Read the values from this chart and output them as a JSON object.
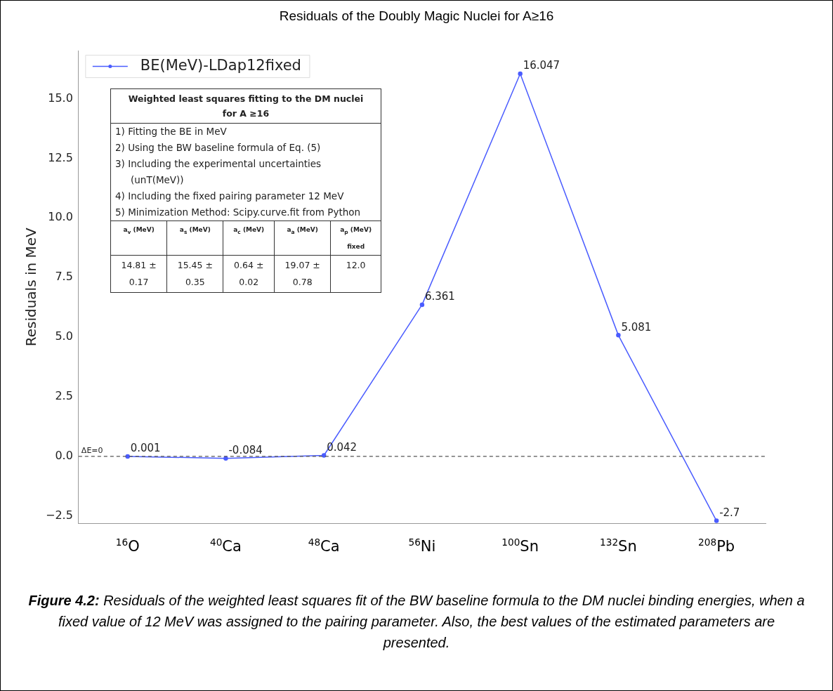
{
  "chart_data": {
    "type": "line",
    "title": "Residuals of the Doubly Magic Nuclei for A≥16",
    "ylabel": "Residuals in MeV",
    "categories": [
      "$^{16}$O",
      "$^{40}$Ca",
      "$^{48}$Ca",
      "$^{56}$Ni",
      "$^{100}$Sn",
      "$^{132}$Sn",
      "$^{208}$Pb"
    ],
    "series": [
      {
        "name": "BE(MeV)-LDap12fixed",
        "color": "#4a5cff",
        "values": [
          0.001,
          -0.084,
          0.042,
          6.361,
          16.047,
          5.081,
          -2.7
        ]
      }
    ],
    "ylim": [
      -2.8,
      17
    ],
    "yticks": [
      {
        "value": -2.5,
        "label": "−2.5"
      },
      {
        "value": 0,
        "label": "0.0"
      },
      {
        "value": 2.5,
        "label": "2.5"
      },
      {
        "value": 5,
        "label": "5.0"
      },
      {
        "value": 7.5,
        "label": "7.5"
      },
      {
        "value": 10,
        "label": "10.0"
      },
      {
        "value": 12.5,
        "label": "12.5"
      },
      {
        "value": 15,
        "label": "15.0"
      }
    ],
    "ref_lines": [
      {
        "axis": "y",
        "value": 0,
        "label": "ΔE=0",
        "color": "#555555",
        "line_style": "dashed"
      }
    ],
    "data_labels": true,
    "grid": false,
    "legend": "top left",
    "marker": "circle",
    "line_style": "solid",
    "annotations": [
      "Weighted least squares fitting to the DM nuclei for A ≥16",
      "1) Fitting the BE in MeV",
      "2) Using the BW baseline formula of Eq. (5)",
      "3) Including the experimental uncertainties (unT(MeV))",
      "4) Including the fixed pairing parameter 12 MeV",
      "5) Minimization Method: Scipy.curve.fit from Python",
      "a$_{v}$ (MeV)",
      "a$_{s}$ (MeV)",
      "a$_{c}$ (MeV)",
      "a$_{a}$ (MeV)",
      "a$_{p}$ (MeV) fixed",
      "14.81 ± 0.17",
      "15.45 ± 0.35",
      "0.64 ± 0.02",
      "19.07 ± 0.78",
      "12.0",
      "Figure 4.2: Residuals of the weighted least squares fit of the BW baseline formula to the DM nuclei binding energies, when a fixed value of 12 MeV was assigned to the pairing parameter. Also, the best values of the estimated parameters are presented."
    ]
  }
}
